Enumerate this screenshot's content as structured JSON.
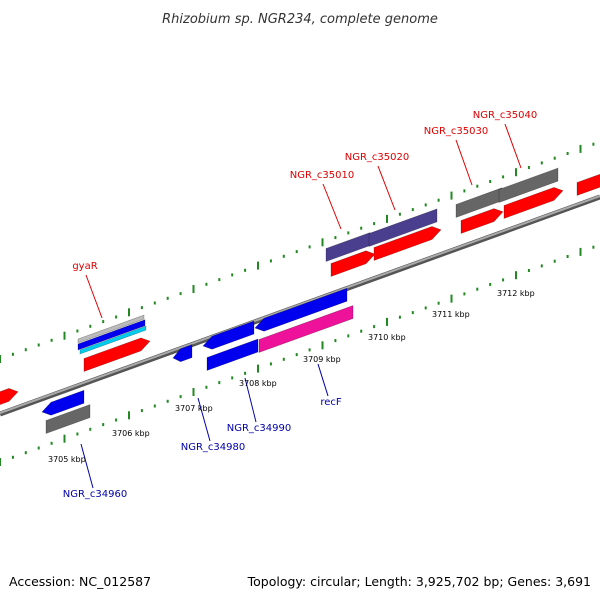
{
  "title": "Rhizobium sp. NGR234, complete genome",
  "accession": "Accession: NC_012587",
  "summary": "Topology: circular; Length: 3,925,702 bp; Genes: 3,691",
  "colors": {
    "forward_label": "#dd0000",
    "reverse_label": "#0000aa",
    "tick": "#228822",
    "backbone": "#808080",
    "cds_forward": "#ff0000",
    "cds_reverse": "#0000ee",
    "gene_grey": "#666666",
    "gene_purple": "#4a3f8f",
    "gene_magenta": "#ee1199",
    "gene_cyan": "#00ccee"
  },
  "scale_labels": [
    "3705 kbp",
    "3706 kbp",
    "3707 kbp",
    "3708 kbp",
    "3709 kbp",
    "3710 kbp",
    "3711 kbp",
    "3712 kbp"
  ],
  "gene_labels_forward": [
    "gyaR",
    "NGR_c35010",
    "NGR_c35020",
    "NGR_c35030",
    "NGR_c35040"
  ],
  "gene_labels_reverse": [
    "NGR_c34960",
    "NGR_c34980",
    "NGR_c34990",
    "recF"
  ]
}
